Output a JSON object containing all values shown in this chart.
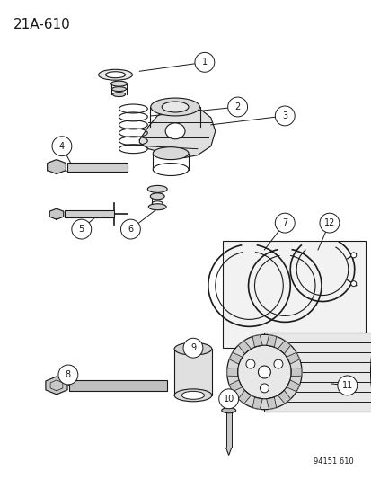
{
  "title": "21A–610",
  "watermark": "94151 610",
  "bg_color": "#ffffff",
  "lc": "#1a1a1a",
  "figsize": [
    4.14,
    5.33
  ],
  "dpi": 100
}
